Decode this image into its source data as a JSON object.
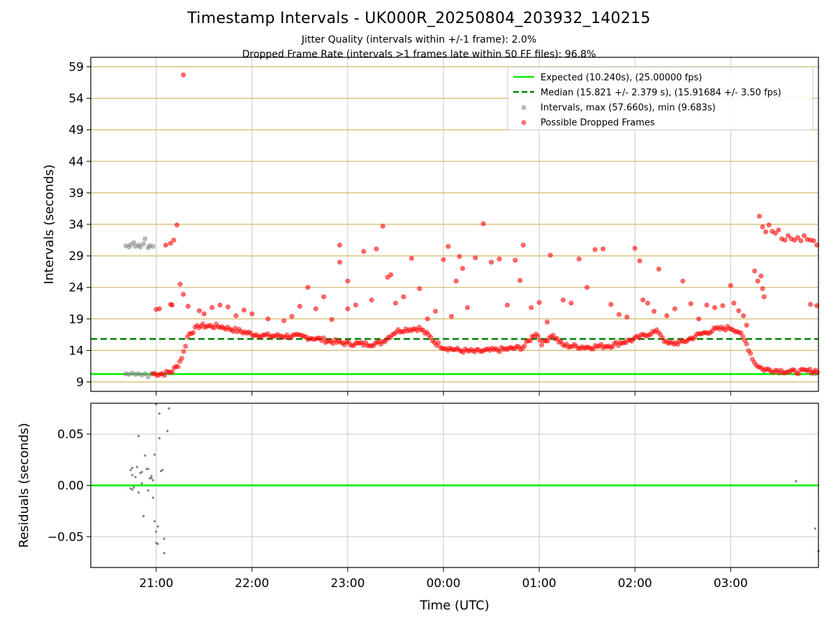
{
  "header": {
    "title": "Timestamp Intervals - UK000R_20250804_203932_140215",
    "subtitle_jitter": "Jitter Quality (intervals within +/-1 frame): 2.0%",
    "subtitle_dropped": "Dropped Frame Rate (intervals >1 frames late within 50 FF files): 96.8%"
  },
  "chart_data": [
    {
      "type": "scatter",
      "ylabel": "Intervals (seconds)",
      "xlim": [
        "20:19",
        "03:55"
      ],
      "ylim": [
        7.5,
        60.5
      ],
      "x_ticks": [
        "21:00",
        "22:00",
        "23:00",
        "00:00",
        "01:00",
        "02:00",
        "03:00"
      ],
      "y_ticks": [
        9,
        14,
        19,
        24,
        29,
        34,
        39,
        44,
        49,
        54,
        59
      ],
      "grid": true,
      "legend_position": "top-right",
      "reference_lines": [
        {
          "name": "Expected (10.240s), (25.00000 fps)",
          "value": 10.24,
          "color": "#00ee00",
          "style": "solid"
        },
        {
          "name": "Median (15.821 +/- 2.379 s), (15.91684 +/- 3.50 fps)",
          "value": 15.821,
          "color": "#008000",
          "style": "dashed"
        }
      ],
      "series": [
        {
          "name": "Intervals, max (57.660s), min (9.683s)",
          "color": "#808080",
          "points": [
            [
              "20:41",
              30.6
            ],
            [
              "20:43",
              30.4
            ],
            [
              "20:44",
              30.8
            ],
            [
              "20:46",
              31.1
            ],
            [
              "20:47",
              30.5
            ],
            [
              "20:49",
              30.7
            ],
            [
              "20:50",
              30.4
            ],
            [
              "20:52",
              30.9
            ],
            [
              "20:53",
              31.7
            ],
            [
              "20:55",
              30.3
            ],
            [
              "20:56",
              30.6
            ],
            [
              "20:58",
              30.5
            ],
            [
              "20:41",
              10.3
            ],
            [
              "20:43",
              10.2
            ],
            [
              "20:45",
              10.4
            ],
            [
              "20:47",
              10.2
            ],
            [
              "20:49",
              10.3
            ],
            [
              "20:51",
              10.1
            ],
            [
              "20:53",
              10.3
            ],
            [
              "20:55",
              9.8
            ],
            [
              "20:57",
              10.3
            ],
            [
              "03:51",
              10.4
            ],
            [
              "03:53",
              10.3
            ]
          ]
        },
        {
          "name": "Possible Dropped Frames",
          "color": "#ff0000",
          "trend": [
            [
              "20:58",
              10.3
            ],
            [
              "21:05",
              10.3
            ],
            [
              "21:10",
              10.7
            ],
            [
              "21:14",
              11.8
            ],
            [
              "21:17",
              13.5
            ],
            [
              "21:20",
              16.5
            ],
            [
              "21:27",
              17.9
            ],
            [
              "21:40",
              17.8
            ],
            [
              "21:50",
              17.2
            ],
            [
              "22:00",
              16.6
            ],
            [
              "22:10",
              16.3
            ],
            [
              "22:20",
              16.3
            ],
            [
              "22:30",
              16.2
            ],
            [
              "22:40",
              15.9
            ],
            [
              "22:50",
              15.4
            ],
            [
              "23:00",
              15.1
            ],
            [
              "23:10",
              15.0
            ],
            [
              "23:20",
              15.1
            ],
            [
              "23:25",
              16.0
            ],
            [
              "23:30",
              17.0
            ],
            [
              "23:35",
              17.3
            ],
            [
              "23:45",
              17.5
            ],
            [
              "23:50",
              16.5
            ],
            [
              "23:55",
              15.2
            ],
            [
              "00:00",
              14.5
            ],
            [
              "00:10",
              14.0
            ],
            [
              "00:20",
              13.8
            ],
            [
              "00:30",
              14.0
            ],
            [
              "00:40",
              14.2
            ],
            [
              "00:50",
              14.5
            ],
            [
              "00:58",
              16.8
            ],
            [
              "01:02",
              15.0
            ],
            [
              "01:08",
              16.5
            ],
            [
              "01:15",
              14.8
            ],
            [
              "01:30",
              14.5
            ],
            [
              "01:45",
              14.8
            ],
            [
              "02:00",
              15.8
            ],
            [
              "02:10",
              16.8
            ],
            [
              "02:15",
              17.0
            ],
            [
              "02:20",
              15.0
            ],
            [
              "02:30",
              15.3
            ],
            [
              "02:40",
              16.5
            ],
            [
              "02:50",
              17.3
            ],
            [
              "03:00",
              17.6
            ],
            [
              "03:05",
              17.0
            ],
            [
              "03:10",
              15.0
            ],
            [
              "03:15",
              12.0
            ],
            [
              "03:20",
              11.0
            ],
            [
              "03:30",
              10.8
            ],
            [
              "03:40",
              10.6
            ],
            [
              "03:55",
              10.8
            ]
          ],
          "scatter": [
            [
              "21:00",
              20.5
            ],
            [
              "21:02",
              20.6
            ],
            [
              "21:09",
              21.3
            ],
            [
              "21:10",
              21.2
            ],
            [
              "21:06",
              30.7
            ],
            [
              "21:09",
              31.0
            ],
            [
              "21:11",
              31.5
            ],
            [
              "21:13",
              33.9
            ],
            [
              "21:15",
              24.5
            ],
            [
              "21:17",
              22.9
            ],
            [
              "21:20",
              21.0
            ],
            [
              "21:27",
              20.3
            ],
            [
              "21:30",
              19.8
            ],
            [
              "21:35",
              20.8
            ],
            [
              "21:40",
              21.2
            ],
            [
              "21:45",
              20.9
            ],
            [
              "21:50",
              19.5
            ],
            [
              "21:55",
              20.4
            ],
            [
              "22:00",
              19.8
            ],
            [
              "22:10",
              19.0
            ],
            [
              "22:20",
              18.7
            ],
            [
              "22:25",
              19.4
            ],
            [
              "22:30",
              21.0
            ],
            [
              "22:35",
              24.0
            ],
            [
              "22:40",
              20.6
            ],
            [
              "22:45",
              22.5
            ],
            [
              "22:50",
              18.9
            ],
            [
              "22:55",
              30.7
            ],
            [
              "22:55",
              28.0
            ],
            [
              "23:00",
              20.6
            ],
            [
              "23:00",
              25.0
            ],
            [
              "23:05",
              21.2
            ],
            [
              "23:10",
              29.7
            ],
            [
              "23:15",
              22.0
            ],
            [
              "23:18",
              30.1
            ],
            [
              "23:22",
              33.7
            ],
            [
              "23:25",
              25.6
            ],
            [
              "23:27",
              26.0
            ],
            [
              "23:30",
              21.5
            ],
            [
              "23:35",
              22.5
            ],
            [
              "23:40",
              28.6
            ],
            [
              "23:45",
              23.8
            ],
            [
              "23:50",
              19.0
            ],
            [
              "23:55",
              20.2
            ],
            [
              "00:00",
              28.4
            ],
            [
              "00:03",
              30.5
            ],
            [
              "00:05",
              19.4
            ],
            [
              "00:08",
              25.0
            ],
            [
              "00:10",
              28.9
            ],
            [
              "00:12",
              27.0
            ],
            [
              "00:15",
              20.8
            ],
            [
              "00:20",
              28.7
            ],
            [
              "00:25",
              34.1
            ],
            [
              "00:30",
              28.0
            ],
            [
              "00:35",
              28.5
            ],
            [
              "00:40",
              21.2
            ],
            [
              "00:45",
              28.3
            ],
            [
              "00:48",
              25.1
            ],
            [
              "00:50",
              30.7
            ],
            [
              "00:55",
              20.8
            ],
            [
              "01:00",
              21.6
            ],
            [
              "01:05",
              18.5
            ],
            [
              "01:07",
              29.1
            ],
            [
              "01:15",
              22.0
            ],
            [
              "01:20",
              21.5
            ],
            [
              "01:25",
              28.5
            ],
            [
              "01:30",
              24.0
            ],
            [
              "01:35",
              30.0
            ],
            [
              "01:40",
              30.1
            ],
            [
              "01:45",
              21.3
            ],
            [
              "01:50",
              19.7
            ],
            [
              "01:55",
              19.3
            ],
            [
              "02:00",
              30.2
            ],
            [
              "02:03",
              28.2
            ],
            [
              "02:05",
              22.0
            ],
            [
              "02:08",
              21.5
            ],
            [
              "02:12",
              20.2
            ],
            [
              "02:15",
              26.9
            ],
            [
              "02:20",
              19.5
            ],
            [
              "02:25",
              20.6
            ],
            [
              "02:30",
              25.0
            ],
            [
              "02:35",
              21.4
            ],
            [
              "02:40",
              19.0
            ],
            [
              "02:45",
              21.2
            ],
            [
              "02:50",
              20.8
            ],
            [
              "02:55",
              21.1
            ],
            [
              "03:00",
              24.3
            ],
            [
              "03:02",
              21.5
            ],
            [
              "03:05",
              20.3
            ],
            [
              "03:08",
              19.5
            ],
            [
              "03:10",
              18.0
            ],
            [
              "03:15",
              26.6
            ],
            [
              "03:17",
              25.0
            ],
            [
              "03:19",
              25.8
            ],
            [
              "03:20",
              23.8
            ],
            [
              "03:21",
              22.5
            ],
            [
              "03:18",
              35.3
            ],
            [
              "03:20",
              33.6
            ],
            [
              "03:22",
              32.8
            ],
            [
              "03:24",
              33.9
            ],
            [
              "03:26",
              32.9
            ],
            [
              "03:28",
              32.6
            ],
            [
              "03:30",
              33.1
            ],
            [
              "03:32",
              31.7
            ],
            [
              "03:34",
              31.5
            ],
            [
              "03:36",
              32.2
            ],
            [
              "03:38",
              31.7
            ],
            [
              "03:40",
              31.5
            ],
            [
              "03:42",
              31.9
            ],
            [
              "03:44",
              31.4
            ],
            [
              "03:46",
              32.2
            ],
            [
              "03:48",
              31.6
            ],
            [
              "03:50",
              31.5
            ],
            [
              "03:52",
              31.4
            ],
            [
              "03:54",
              30.7
            ],
            [
              "03:50",
              21.3
            ],
            [
              "03:54",
              21.1
            ],
            [
              "21:17",
              57.7
            ]
          ]
        }
      ]
    },
    {
      "type": "scatter",
      "xlabel": "Time (UTC)",
      "ylabel": "Residuals (seconds)",
      "xlim": [
        "20:19",
        "03:55"
      ],
      "ylim": [
        -0.08,
        0.08
      ],
      "x_ticks": [
        "21:00",
        "22:00",
        "23:00",
        "00:00",
        "01:00",
        "02:00",
        "03:00"
      ],
      "y_ticks": [
        0.05,
        0.0,
        -0.05
      ],
      "y_tick_labels": [
        "0.05",
        "0.00",
        "−0.05"
      ],
      "grid": true,
      "reference_line": {
        "value": 0.0,
        "color": "#00ee00"
      },
      "series": [
        {
          "name": "",
          "color": "#808080",
          "points": [
            [
              "20:44",
              0.015
            ],
            [
              "20:45",
              0.01
            ],
            [
              "20:45",
              0.017
            ],
            [
              "20:44",
              -0.003
            ],
            [
              "20:45",
              -0.004
            ],
            [
              "20:46",
              -0.002
            ],
            [
              "20:47",
              0.008
            ],
            [
              "20:48",
              0.018
            ],
            [
              "20:49",
              -0.007
            ],
            [
              "20:49",
              0.048
            ],
            [
              "20:50",
              0.012
            ],
            [
              "20:51",
              0.013
            ],
            [
              "20:51",
              0.002
            ],
            [
              "20:52",
              -0.03
            ],
            [
              "20:53",
              0.029
            ],
            [
              "20:54",
              0.016
            ],
            [
              "20:55",
              0.016
            ],
            [
              "20:55",
              -0.005
            ],
            [
              "20:56",
              0.007
            ],
            [
              "20:57",
              0.009
            ],
            [
              "20:57",
              0.007
            ],
            [
              "20:58",
              0.005
            ],
            [
              "20:58",
              -0.012
            ],
            [
              "20:59",
              -0.035
            ],
            [
              "20:59",
              0.03
            ],
            [
              "21:00",
              -0.045
            ],
            [
              "21:00",
              -0.056
            ],
            [
              "21:01",
              -0.04
            ],
            [
              "21:01",
              -0.057
            ],
            [
              "21:02",
              0.046
            ],
            [
              "21:02",
              0.07
            ],
            [
              "21:03",
              0.014
            ],
            [
              "21:04",
              0.015
            ],
            [
              "21:05",
              -0.052
            ],
            [
              "21:05",
              -0.066
            ],
            [
              "21:07",
              0.053
            ],
            [
              "21:08",
              0.075
            ],
            [
              "21:00",
              0.079
            ],
            [
              "03:41",
              0.004
            ],
            [
              "03:53",
              -0.042
            ],
            [
              "03:55",
              -0.064
            ]
          ]
        }
      ]
    }
  ],
  "colors": {
    "grid_gray": "#c8c8c8",
    "grid_gold": "#d2b969",
    "expected_green": "#00ee00",
    "median_green": "#008000",
    "intervals_gray": "#808080",
    "dropped_red": "#ff0000"
  }
}
